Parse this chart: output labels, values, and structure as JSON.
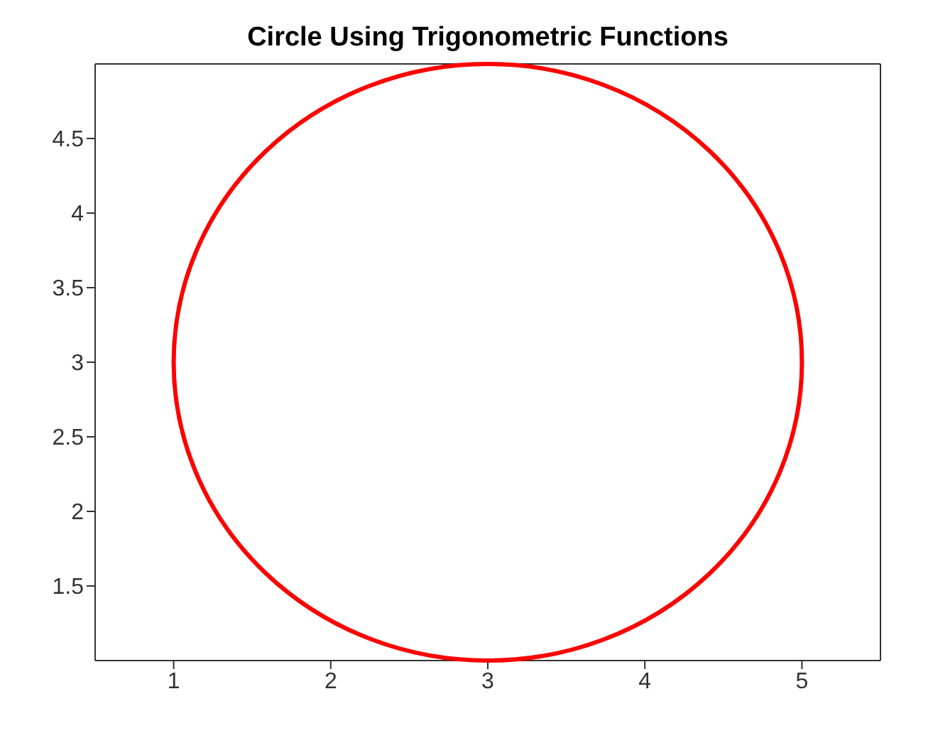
{
  "chart_data": {
    "type": "line",
    "title": "Circle Using Trigonometric Functions",
    "xlim": [
      0.5,
      5.5
    ],
    "ylim": [
      1,
      5
    ],
    "xticks": [
      1,
      2,
      3,
      4,
      5
    ],
    "yticks": [
      1.5,
      2,
      2.5,
      3,
      3.5,
      4,
      4.5
    ],
    "grid": false
  }
}
